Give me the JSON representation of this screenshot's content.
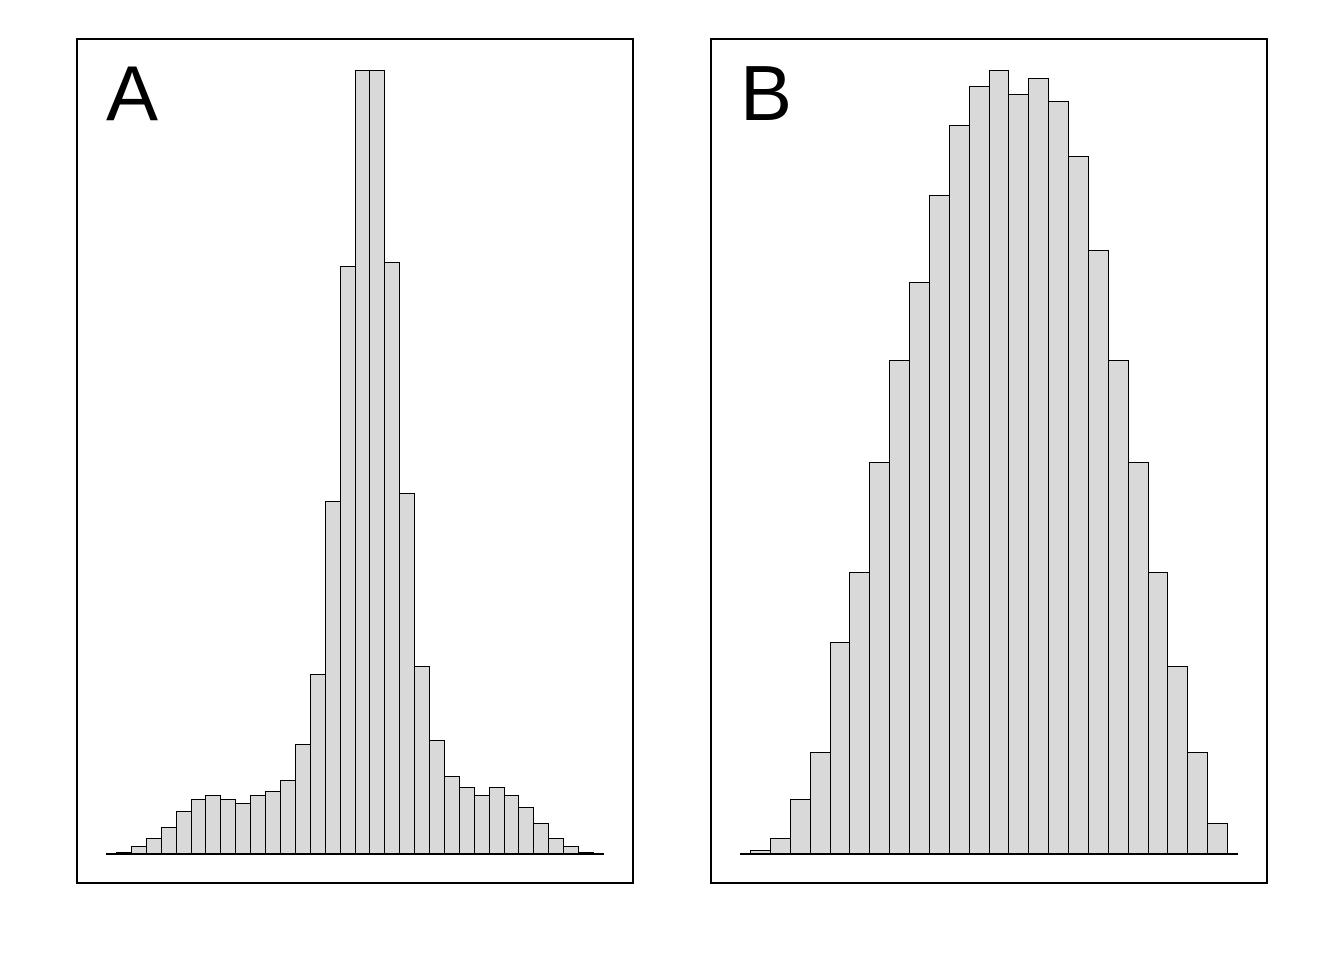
{
  "figure": {
    "background_color": "#ffffff",
    "bar_fill_color": "#d9d9d9",
    "bar_stroke_color": "#000000",
    "frame_color": "#000000"
  },
  "chart_data": [
    {
      "type": "bar",
      "panel_label": "A",
      "title": "",
      "xlabel": "",
      "ylabel": "",
      "ylim": [
        0,
        1
      ],
      "grid": false,
      "legend": false,
      "values": [
        0.003,
        0.01,
        0.02,
        0.035,
        0.055,
        0.07,
        0.075,
        0.07,
        0.065,
        0.075,
        0.08,
        0.095,
        0.14,
        0.23,
        0.45,
        0.75,
        1.0,
        1.0,
        0.755,
        0.46,
        0.24,
        0.145,
        0.1,
        0.085,
        0.075,
        0.085,
        0.075,
        0.06,
        0.04,
        0.02,
        0.01,
        0.003
      ]
    },
    {
      "type": "bar",
      "panel_label": "B",
      "title": "",
      "xlabel": "",
      "ylabel": "",
      "ylim": [
        0,
        1
      ],
      "grid": false,
      "legend": false,
      "values": [
        0.005,
        0.02,
        0.07,
        0.13,
        0.27,
        0.36,
        0.5,
        0.63,
        0.73,
        0.84,
        0.93,
        0.98,
        1.0,
        0.97,
        0.99,
        0.96,
        0.89,
        0.77,
        0.63,
        0.5,
        0.36,
        0.24,
        0.13,
        0.04
      ]
    }
  ]
}
